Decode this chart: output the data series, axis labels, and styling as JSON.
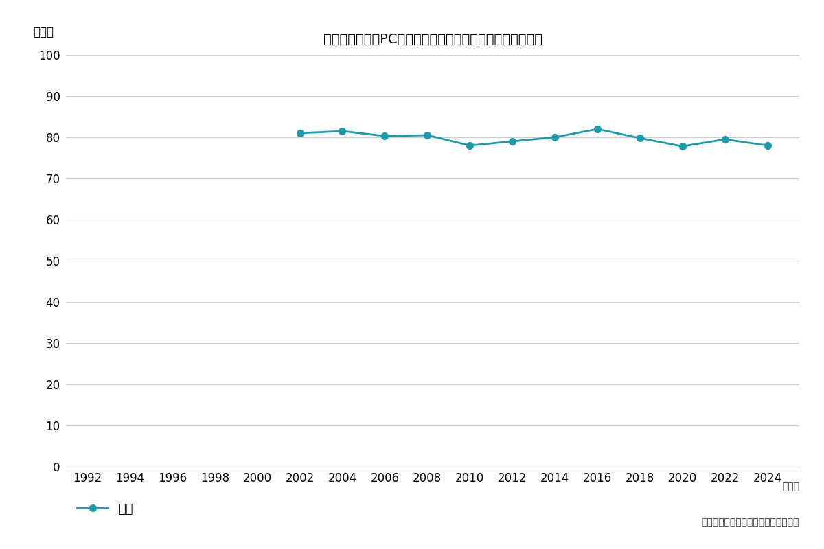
{
  "title": "勤務中に会社のPCで私用のメールを送受信したことがない",
  "ylabel": "（％）",
  "xlabel_unit": "（年）",
  "footer": "（博報堂生活総研「生活定点」調査）",
  "legend_label": "全体",
  "x_all": [
    1992,
    1994,
    1996,
    1998,
    2000,
    2002,
    2004,
    2006,
    2008,
    2010,
    2012,
    2014,
    2016,
    2018,
    2020,
    2022,
    2024
  ],
  "x_data": [
    2002,
    2004,
    2006,
    2008,
    2010,
    2012,
    2014,
    2016,
    2018,
    2020,
    2022,
    2024
  ],
  "y_data": [
    81.0,
    81.5,
    80.3,
    80.5,
    78.0,
    79.0,
    80.0,
    82.0,
    79.8,
    77.8,
    79.5,
    78.0
  ],
  "line_color": "#1a9bab",
  "marker": "o",
  "marker_size": 7,
  "line_width": 2.0,
  "ylim": [
    0,
    100
  ],
  "yticks": [
    0,
    10,
    20,
    30,
    40,
    50,
    60,
    70,
    80,
    90,
    100
  ],
  "bg_color": "#ffffff",
  "grid_color": "#cccccc",
  "title_fontsize": 14,
  "tick_fontsize": 12,
  "label_fontsize": 12,
  "footer_fontsize": 10
}
